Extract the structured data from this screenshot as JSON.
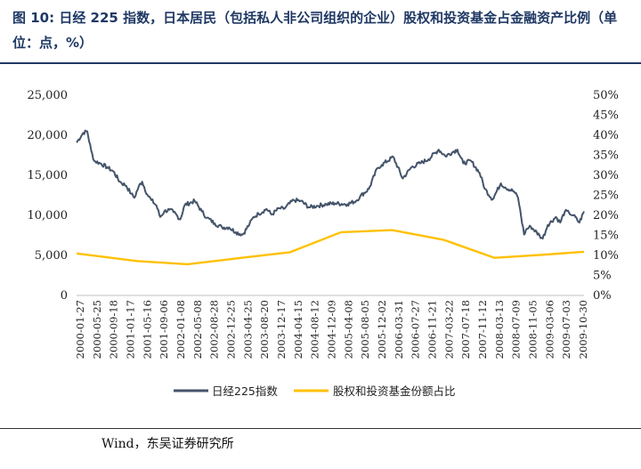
{
  "title": "图 10:  日经 225 指数，日本居民（包括私人非公司组织的企业）股权和投资基金占金融资产比例（单位：点，%）",
  "source": "Wind，东吴证券研究所",
  "colors": {
    "nikkei": "#44546a",
    "share": "#ffc000",
    "title": "#1f3864"
  },
  "chart_data": {
    "type": "line",
    "left_axis": {
      "ticks": [
        "0",
        "5,000",
        "10,000",
        "15,000",
        "20,000",
        "25,000"
      ],
      "ylim": [
        0,
        25000
      ]
    },
    "right_axis": {
      "ticks": [
        "0%",
        "5%",
        "10%",
        "15%",
        "20%",
        "25%",
        "30%",
        "35%",
        "40%",
        "45%",
        "50%"
      ],
      "ylim": [
        0,
        50
      ]
    },
    "x_tick_labels": [
      "2000-01-27",
      "2000-05-25",
      "2000-09-18",
      "2001-01-17",
      "2001-05-16",
      "2001-09-06",
      "2002-01-08",
      "2002-05-08",
      "2002-08-28",
      "2002-12-25",
      "2003-04-25",
      "2003-08-20",
      "2003-12-17",
      "2004-04-15",
      "2004-08-12",
      "2004-12-09",
      "2005-04-08",
      "2005-08-05",
      "2005-12-02",
      "2006-03-31",
      "2006-07-27",
      "2006-11-21",
      "2007-03-22",
      "2007-07-18",
      "2007-11-12",
      "2008-03-13",
      "2008-07-09",
      "2008-11-05",
      "2009-03-06",
      "2009-07-03",
      "2009-10-30"
    ],
    "series": [
      {
        "name": "日经225指数",
        "axis": "left",
        "x": [
          "2000-01-27",
          "2000-03-15",
          "2000-04-12",
          "2000-05-10",
          "2000-06-01",
          "2000-07-15",
          "2000-09-01",
          "2000-10-15",
          "2000-12-01",
          "2001-01-15",
          "2001-02-20",
          "2001-03-15",
          "2001-04-15",
          "2001-05-10",
          "2001-06-15",
          "2001-07-15",
          "2001-08-20",
          "2001-09-15",
          "2001-10-15",
          "2001-11-20",
          "2001-12-20",
          "2002-02-06",
          "2002-03-10",
          "2002-05-20",
          "2002-07-10",
          "2002-08-15",
          "2002-10-10",
          "2002-12-01",
          "2003-01-20",
          "2003-03-10",
          "2003-04-28",
          "2003-06-15",
          "2003-07-15",
          "2003-08-20",
          "2003-10-15",
          "2003-11-20",
          "2004-01-15",
          "2004-02-15",
          "2004-04-26",
          "2004-06-15",
          "2004-08-15",
          "2004-10-15",
          "2004-12-15",
          "2005-02-15",
          "2005-05-15",
          "2005-07-15",
          "2005-08-15",
          "2005-10-15",
          "2005-12-15",
          "2006-01-15",
          "2006-04-07",
          "2006-06-14",
          "2006-08-15",
          "2006-10-15",
          "2006-12-15",
          "2007-02-26",
          "2007-04-15",
          "2007-06-15",
          "2007-07-10",
          "2007-08-20",
          "2007-10-15",
          "2007-12-15",
          "2008-01-22",
          "2008-03-17",
          "2008-05-15",
          "2008-06-15",
          "2008-08-15",
          "2008-09-15",
          "2008-10-28",
          "2008-11-15",
          "2008-12-15",
          "2009-02-15",
          "2009-03-10",
          "2009-04-15",
          "2009-06-12",
          "2009-07-13",
          "2009-08-15",
          "2009-09-15",
          "2009-10-15",
          "2009-11-27",
          "2009-12-30"
        ],
        "values": [
          19100,
          20300,
          20500,
          18100,
          16800,
          16500,
          16000,
          15500,
          14200,
          13700,
          12700,
          12200,
          13600,
          14200,
          12600,
          11900,
          11200,
          9800,
          10500,
          10700,
          10400,
          9500,
          11300,
          11800,
          10500,
          9700,
          9000,
          8500,
          8500,
          7900,
          7600,
          8900,
          9800,
          10200,
          10800,
          10100,
          10900,
          10800,
          11900,
          11800,
          11000,
          11200,
          11400,
          11500,
          11400,
          11800,
          12400,
          13300,
          15900,
          16300,
          17300,
          14600,
          16000,
          16500,
          17000,
          18200,
          17400,
          18000,
          18200,
          16500,
          16800,
          15300,
          13300,
          12000,
          14000,
          13500,
          13000,
          12200,
          7600,
          8300,
          8600,
          7500,
          7100,
          8800,
          9800,
          9100,
          10500,
          10300,
          10000,
          9100,
          10500
        ]
      },
      {
        "name": "股权和投资基金份额占比",
        "axis": "right",
        "x": [
          "2000-01-27",
          "2001-03-31",
          "2002-03-31",
          "2003-03-31",
          "2004-03-31",
          "2005-03-31",
          "2006-03-31",
          "2007-03-31",
          "2008-03-31",
          "2009-03-31",
          "2009-12-30"
        ],
        "values": [
          10.5,
          8.6,
          7.8,
          9.3,
          10.8,
          15.8,
          16.3,
          13.9,
          9.4,
          10.2,
          10.9
        ]
      }
    ]
  }
}
